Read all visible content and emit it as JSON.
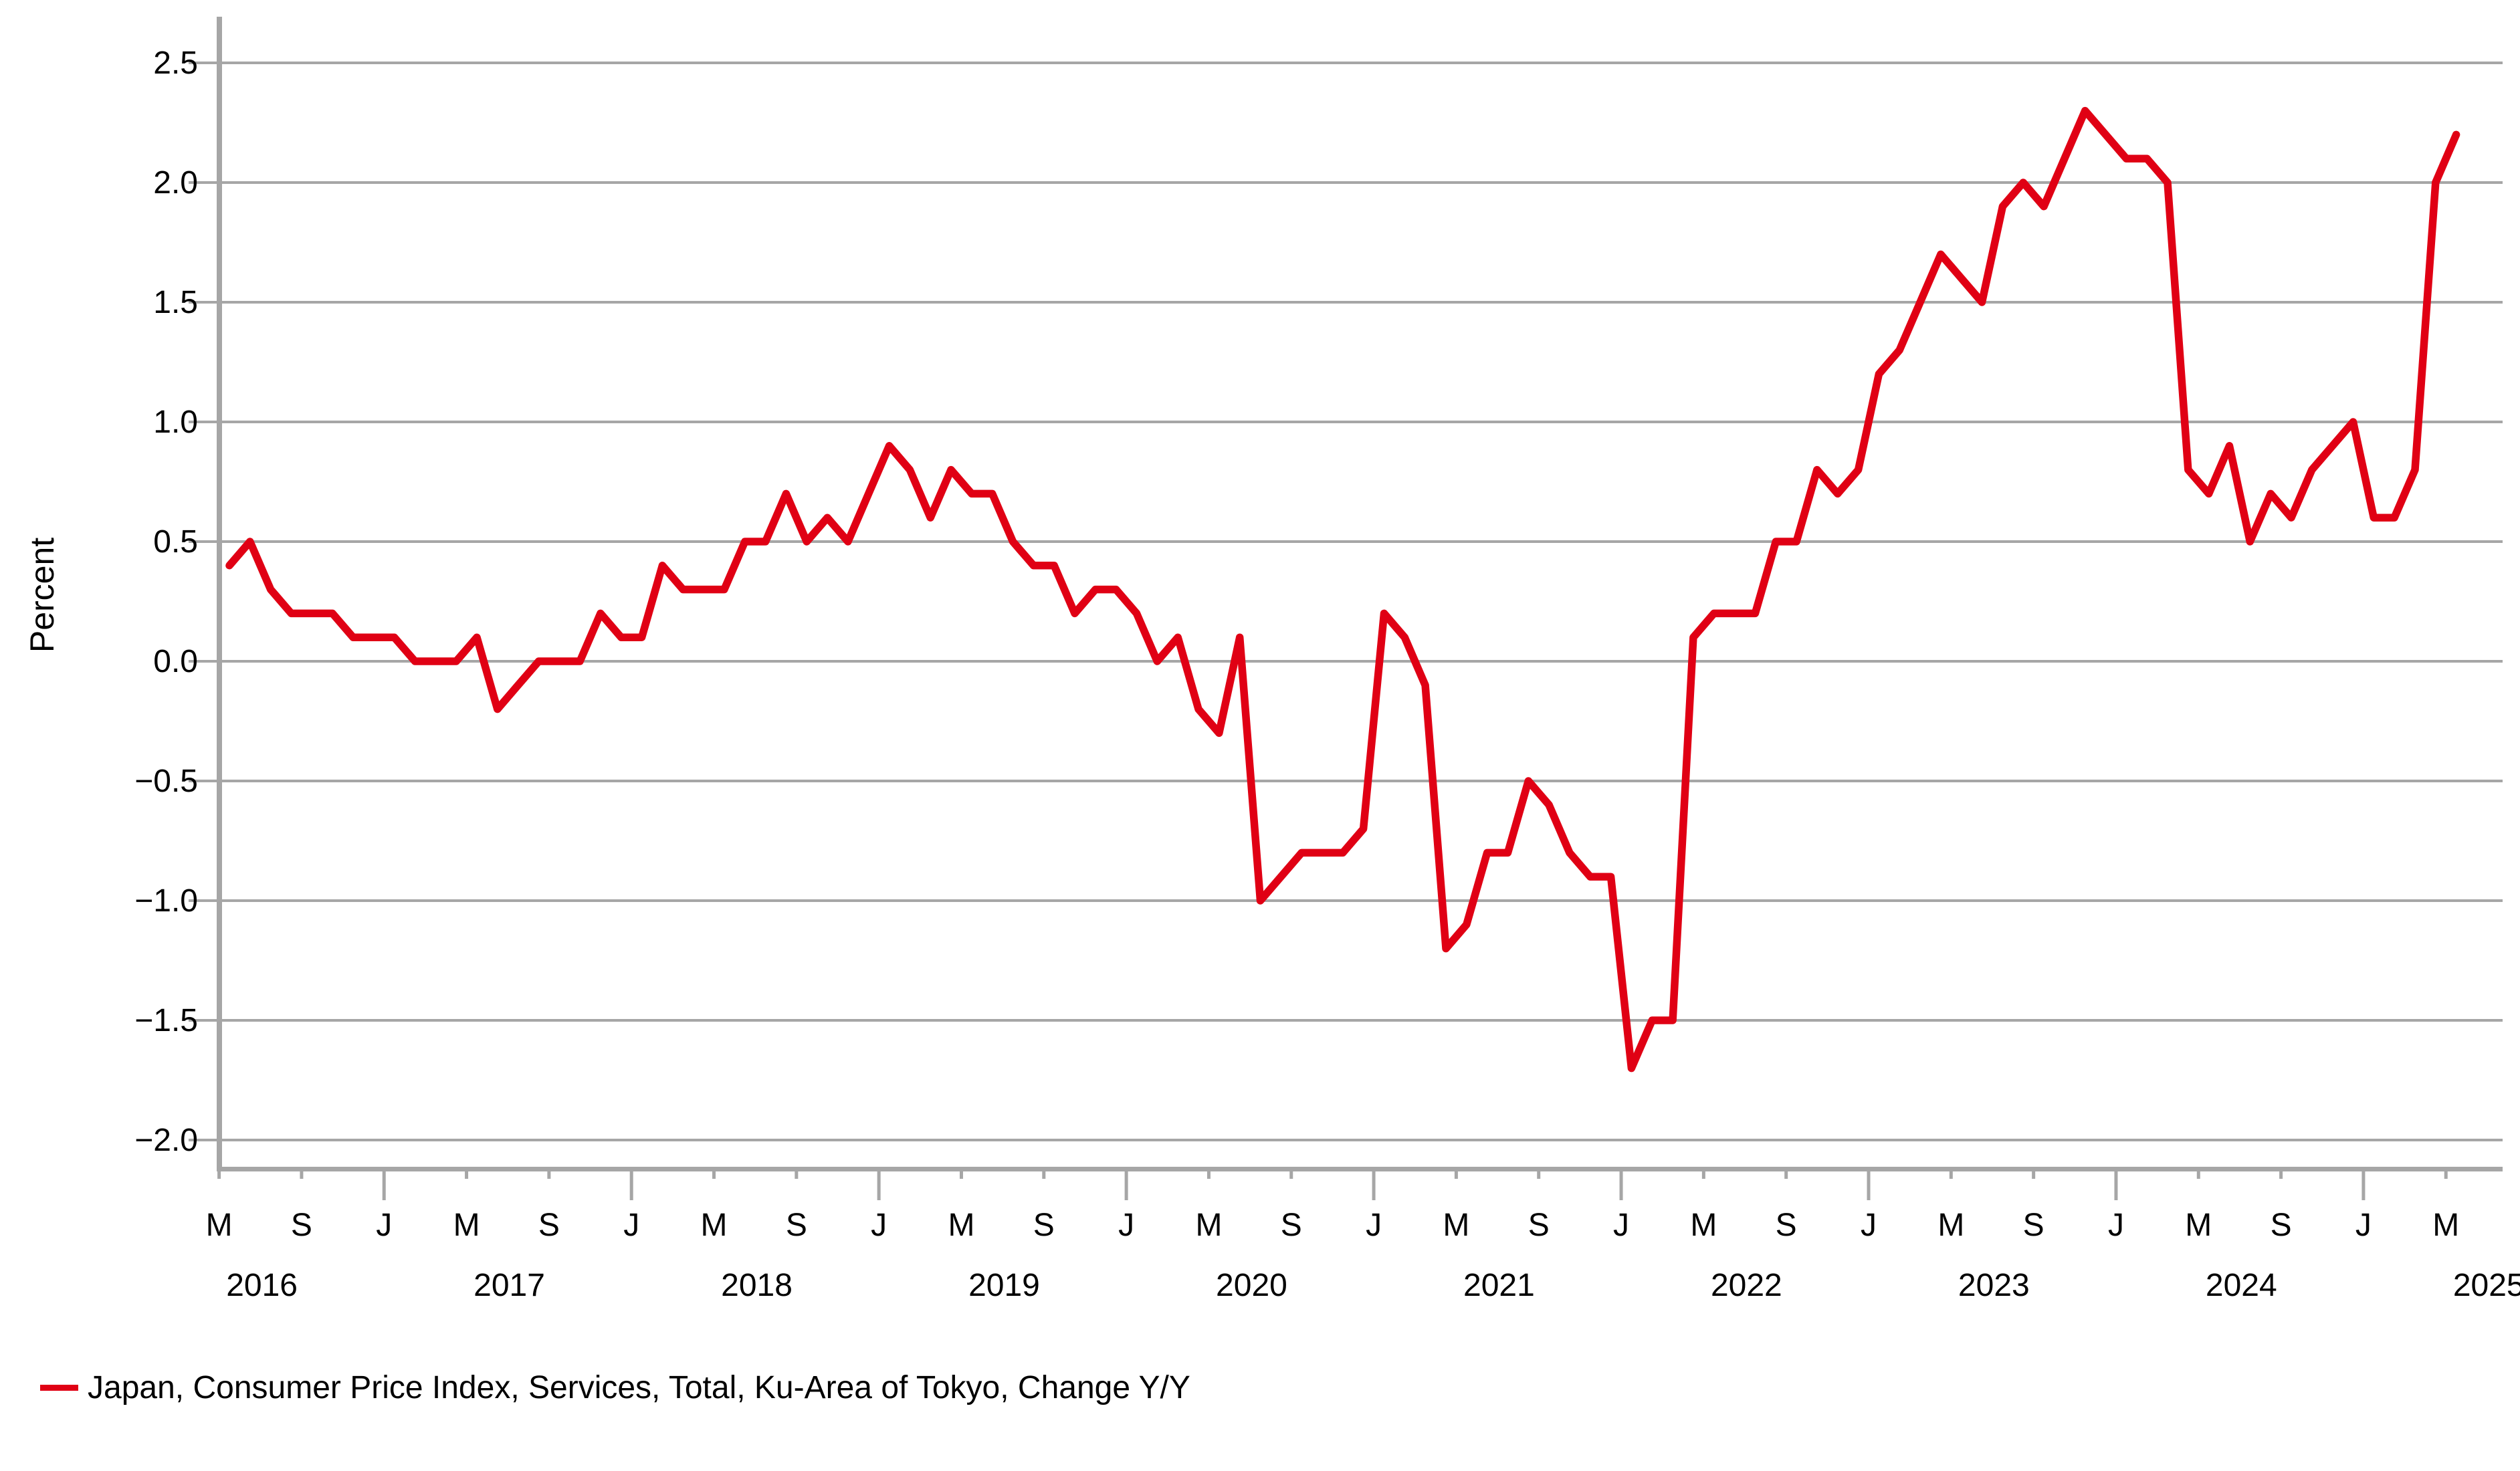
{
  "chart_data": {
    "type": "line",
    "title": "",
    "xlabel": "",
    "ylabel": "Percent",
    "grid": true,
    "background_color": "#ffffff",
    "gridline_color": "#a6a6a6",
    "axis_color": "#a6a6a6",
    "text_color": "#000000",
    "ylim": [
      -2.15,
      2.7
    ],
    "y_ticks": [
      {
        "value": 2.5,
        "label": "2.5"
      },
      {
        "value": 2.0,
        "label": "2.0"
      },
      {
        "value": 1.5,
        "label": "1.5"
      },
      {
        "value": 1.0,
        "label": "1.0"
      },
      {
        "value": 0.5,
        "label": "0.5"
      },
      {
        "value": 0.0,
        "label": "0.0"
      },
      {
        "value": -0.5,
        "label": "−0.5"
      },
      {
        "value": -1.0,
        "label": "−1.0"
      },
      {
        "value": -1.5,
        "label": "−1.5"
      },
      {
        "value": -2.0,
        "label": "−2.0"
      }
    ],
    "x_ticks": {
      "months_per_tick": 4,
      "letters": [
        "M",
        "S",
        "J",
        "M",
        "S",
        "J",
        "M",
        "S",
        "J",
        "M",
        "S",
        "J",
        "M",
        "S",
        "J",
        "M",
        "S",
        "J",
        "M",
        "S",
        "J",
        "M",
        "S",
        "J",
        "M",
        "S",
        "J",
        "M"
      ],
      "long_letter": "J",
      "years": [
        {
          "label": "2016",
          "tick_index": 0
        },
        {
          "label": "2017",
          "tick_index": 3
        },
        {
          "label": "2018",
          "tick_index": 6
        },
        {
          "label": "2019",
          "tick_index": 9
        },
        {
          "label": "2020",
          "tick_index": 12
        },
        {
          "label": "2021",
          "tick_index": 15
        },
        {
          "label": "2022",
          "tick_index": 18
        },
        {
          "label": "2023",
          "tick_index": 21
        },
        {
          "label": "2024",
          "tick_index": 24
        },
        {
          "label": "2025",
          "tick_index": 27
        }
      ]
    },
    "series": [
      {
        "name": "Japan, Consumer Price Index, Services, Total, Ku-Area of Tokyo, Change Y/Y",
        "color": "#e00014",
        "start": "2016-05",
        "frequency": "monthly",
        "end": "2025-05",
        "values": [
          0.4,
          0.5,
          0.3,
          0.2,
          0.2,
          0.2,
          0.1,
          0.1,
          0.1,
          0.0,
          0.0,
          0.0,
          0.1,
          -0.2,
          -0.1,
          0.0,
          0.0,
          0.0,
          0.2,
          0.1,
          0.1,
          0.4,
          0.3,
          0.3,
          0.3,
          0.5,
          0.5,
          0.7,
          0.5,
          0.6,
          0.5,
          0.7,
          0.9,
          0.8,
          0.6,
          0.8,
          0.7,
          0.7,
          0.5,
          0.4,
          0.4,
          0.2,
          0.3,
          0.3,
          0.2,
          0.0,
          0.1,
          -0.2,
          -0.3,
          0.1,
          -1.0,
          -0.9,
          -0.8,
          -0.8,
          -0.8,
          -0.7,
          0.2,
          0.1,
          -0.1,
          -1.2,
          -1.1,
          -0.8,
          -0.8,
          -0.5,
          -0.6,
          -0.8,
          -0.9,
          -0.9,
          -1.7,
          -1.5,
          -1.5,
          0.1,
          0.2,
          0.2,
          0.2,
          0.5,
          0.5,
          0.8,
          0.7,
          0.8,
          1.2,
          1.3,
          1.5,
          1.7,
          1.6,
          1.5,
          1.9,
          2.0,
          1.9,
          2.1,
          2.3,
          2.2,
          2.1,
          2.1,
          2.0,
          0.8,
          0.7,
          0.9,
          0.5,
          0.7,
          0.6,
          0.8,
          0.9,
          1.0,
          0.6,
          0.6,
          0.8,
          2.0,
          2.2
        ]
      }
    ],
    "legend": {
      "position": "bottom-left",
      "entries": [
        {
          "swatch": "red-line",
          "label": "Japan, Consumer Price Index, Services, Total, Ku-Area of Tokyo, Change Y/Y"
        }
      ]
    }
  }
}
